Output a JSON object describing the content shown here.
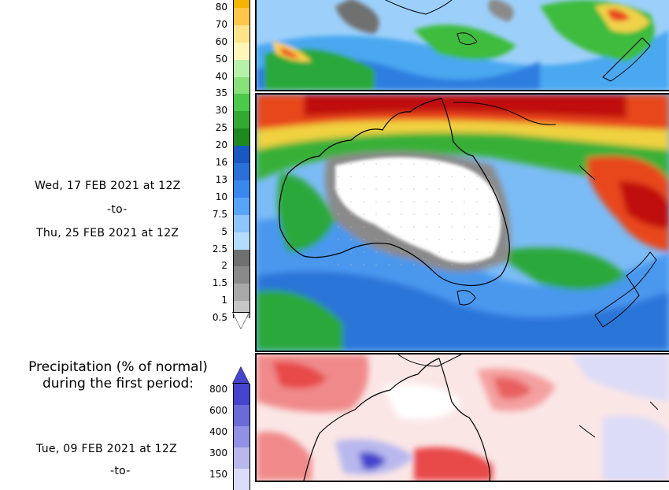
{
  "second_period": {
    "date_from": "Wed, 17 FEB 2021 at 12Z",
    "to_word": "-to-",
    "date_to": "Thu, 25 FEB 2021 at 12Z"
  },
  "amount_scale": {
    "labels": [
      "80",
      "70",
      "60",
      "50",
      "40",
      "35",
      "30",
      "25",
      "20",
      "16",
      "13",
      "10",
      "7.5",
      "5",
      "2.5",
      "2",
      "1.5",
      "1",
      "0.5"
    ],
    "colors": [
      "#f5b400",
      "#ffc64a",
      "#ffe38a",
      "#fff5b8",
      "#b8f0a8",
      "#88e07a",
      "#4cc84a",
      "#33a833",
      "#1d8a1d",
      "#1858c0",
      "#2a70d8",
      "#3a88ee",
      "#5aa4f8",
      "#8cc4fc",
      "#b4dcfe",
      "#707070",
      "#8a8a8a",
      "#a8a8a8",
      "#c6c6c6"
    ]
  },
  "first_period": {
    "title_line1": "Precipitation (% of normal)",
    "title_line2": "during the first period:",
    "date_from": "Tue, 09 FEB 2021 at 12Z",
    "to_word": "-to-"
  },
  "percent_scale": {
    "labels": [
      "800",
      "600",
      "400",
      "300",
      "150"
    ],
    "colors": [
      "#4444cc",
      "#6a6ad8",
      "#9090e4",
      "#b8b8ee",
      "#dcdcf8"
    ]
  }
}
